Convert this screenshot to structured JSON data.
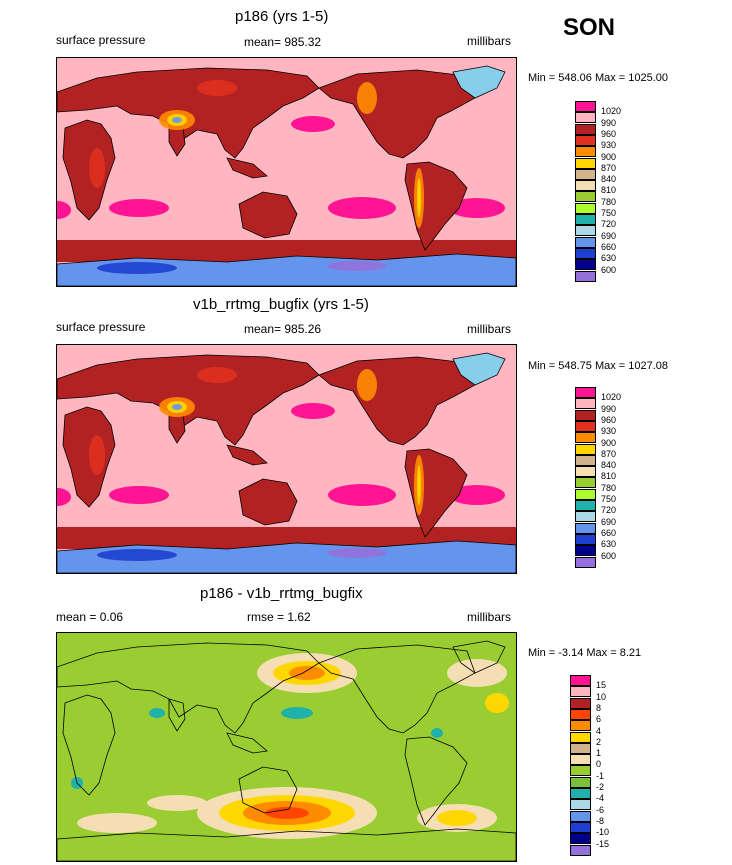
{
  "season": "SON",
  "panels": [
    {
      "title": "p186 (yrs 1-5)",
      "left_label": "surface pressure",
      "center_label": "mean= 985.32",
      "right_label": "millibars",
      "minmax": "Min = 548.06 Max = 1025.00",
      "colorbar": {
        "colors": [
          "#ff1493",
          "#ffb6c1",
          "#b22222",
          "#e0301e",
          "#ff8c00",
          "#ffd700",
          "#d2b48c",
          "#f5deb3",
          "#9acd32",
          "#adff2f",
          "#20b2aa",
          "#add8e6",
          "#6495ed",
          "#1e3fd0",
          "#00008b",
          "#9370db"
        ],
        "labels": [
          "1020",
          "990",
          "960",
          "930",
          "900",
          "870",
          "840",
          "810",
          "780",
          "750",
          "720",
          "690",
          "660",
          "630",
          "600"
        ]
      }
    },
    {
      "title": "v1b_rrtmg_bugfix (yrs 1-5)",
      "left_label": "surface pressure",
      "center_label": "mean= 985.26",
      "right_label": "millibars",
      "minmax": "Min = 548.75 Max = 1027.08",
      "colorbar": {
        "colors": [
          "#ff1493",
          "#ffb6c1",
          "#b22222",
          "#e0301e",
          "#ff8c00",
          "#ffd700",
          "#d2b48c",
          "#f5deb3",
          "#9acd32",
          "#adff2f",
          "#20b2aa",
          "#add8e6",
          "#6495ed",
          "#1e3fd0",
          "#00008b",
          "#9370db"
        ],
        "labels": [
          "1020",
          "990",
          "960",
          "930",
          "900",
          "870",
          "840",
          "810",
          "780",
          "750",
          "720",
          "690",
          "660",
          "630",
          "600"
        ]
      }
    },
    {
      "title": "p186 - v1b_rrtmg_bugfix",
      "left_label": "mean =   0.06",
      "center_label": "rmse =   1.62",
      "right_label": "millibars",
      "minmax": "Min =  -3.14 Max =   8.21",
      "colorbar": {
        "colors": [
          "#ff1493",
          "#ffb6c1",
          "#b22222",
          "#ff4500",
          "#ff8c00",
          "#ffd700",
          "#d2b48c",
          "#f5deb3",
          "#9acd32",
          "#7cbf3a",
          "#20b2aa",
          "#add8e6",
          "#6495ed",
          "#1e3fd0",
          "#00008b",
          "#9370db"
        ],
        "labels": [
          "15",
          "10",
          "8",
          "6",
          "4",
          "2",
          "1",
          "0",
          "-1",
          "-2",
          "-4",
          "-6",
          "-8",
          "-10",
          "-15"
        ]
      }
    }
  ],
  "map_colors": {
    "ocean_mean": "#ffb6c1",
    "high": "#ff1493",
    "land_base": "#b22222",
    "land_mid": "#e0301e",
    "land_hi": "#ff8c00",
    "plateau": "#ffd700",
    "ice1": "#87ceeb",
    "ice2": "#6495ed",
    "ice3": "#1e3fd0",
    "ice4": "#9370db",
    "diff_base": "#9acd32",
    "diff_pos1": "#f5deb3",
    "diff_pos2": "#ffd700",
    "diff_pos3": "#ff8c00",
    "diff_pos4": "#ff4500",
    "diff_neg": "#20b2aa"
  }
}
